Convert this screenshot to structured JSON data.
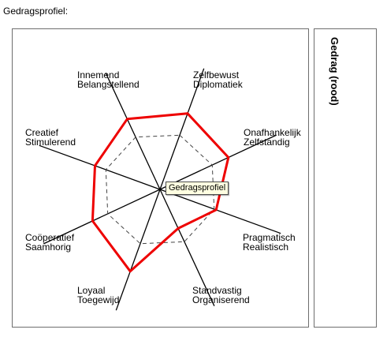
{
  "section_title": "Gedragsprofiel:",
  "legend": {
    "label": "Gedrag (rood)"
  },
  "tooltip": {
    "text": "Gedragsprofiel"
  },
  "colors": {
    "profile_line": "#ee0000",
    "reference_line": "#444444",
    "axis_line": "#000000",
    "panel_border": "#6e6e6e",
    "tooltip_bg": "#ffffe1"
  },
  "chart_data": {
    "type": "radar",
    "title": "",
    "axes": [
      [
        "Zelfbewust",
        "Diplomatiek"
      ],
      [
        "Onafhankelijk",
        "Zelfstandig"
      ],
      [
        "Pragmatisch",
        "Realistisch"
      ],
      [
        "Standvastig",
        "Organiserend"
      ],
      [
        "Loyaal",
        "Toegewijd"
      ],
      [
        "Coöperatief",
        "Saamhorig"
      ],
      [
        "Creatief",
        "Stimulerend"
      ],
      [
        "Innemend",
        "Belangstellend"
      ]
    ],
    "range": [
      0,
      1
    ],
    "series": [
      {
        "values": [
          0.77,
          0.72,
          0.57,
          0.41,
          0.83,
          0.71,
          0.66,
          0.74
        ]
      },
      {
        "values": [
          0.55,
          0.55,
          0.55,
          0.55,
          0.55,
          0.55,
          0.55,
          0.55
        ]
      }
    ]
  }
}
